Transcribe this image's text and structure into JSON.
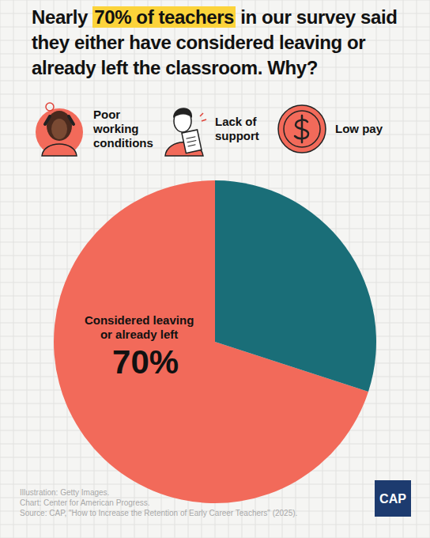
{
  "chart_data": {
    "type": "pie",
    "title": "Nearly 70% of teachers in our survey said they either have considered leaving or already left the classroom. Why?",
    "title_highlight": "70% of teachers",
    "annotations": [
      "Poor working conditions",
      "Lack of support",
      "Low pay"
    ],
    "categories": [
      "Considered leaving or already left",
      null
    ],
    "values": [
      70,
      30
    ],
    "value_labels": [
      "70%",
      null
    ],
    "colors": [
      "#f26a5a",
      "#1a6e78"
    ],
    "data_labels": true,
    "notes": [
      "Illustration: Getty Images.",
      "Chart: Center for American Progress.",
      "Source: CAP, \"How to Increase the Retention of Early Career Teachers\" (2025)."
    ],
    "logo": "CAP"
  }
}
